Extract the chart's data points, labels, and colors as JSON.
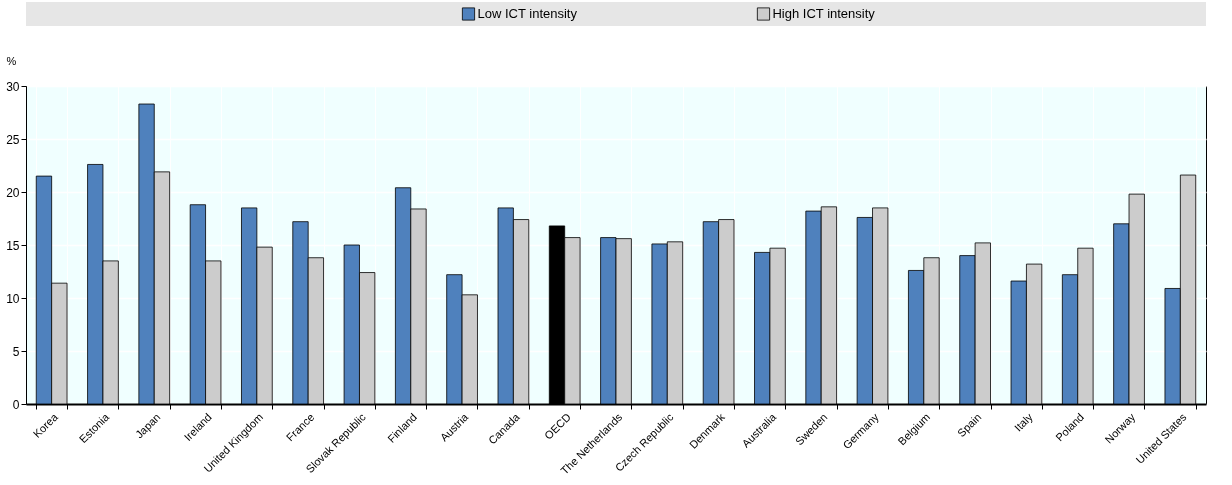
{
  "chart_data": {
    "type": "bar",
    "ylabel": "%",
    "categories": [
      "Korea",
      "Estonia",
      "Japan",
      "Ireland",
      "United Kingdom",
      "France",
      "Slovak Republic",
      "Finland",
      "Austria",
      "Canada",
      "OECD",
      "The Netherlands",
      "Czech Republic",
      "Denmark",
      "Australia",
      "Sweden",
      "Germany",
      "Belgium",
      "Spain",
      "Italy",
      "Poland",
      "Norway",
      "United States"
    ],
    "series": [
      {
        "name": "Low  ICT intensity",
        "color": "#4f81bd",
        "colors": [
          "#4f81bd",
          "#4f81bd",
          "#4f81bd",
          "#4f81bd",
          "#4f81bd",
          "#4f81bd",
          "#4f81bd",
          "#4f81bd",
          "#4f81bd",
          "#4f81bd",
          "#000000",
          "#4f81bd",
          "#4f81bd",
          "#4f81bd",
          "#4f81bd",
          "#4f81bd",
          "#4f81bd",
          "#4f81bd",
          "#4f81bd",
          "#4f81bd",
          "#4f81bd",
          "#4f81bd",
          "#4f81bd"
        ],
        "values": [
          21.5,
          22.6,
          28.3,
          18.8,
          18.5,
          17.2,
          15.0,
          20.4,
          12.2,
          18.5,
          16.8,
          15.7,
          15.1,
          17.2,
          14.3,
          18.2,
          17.6,
          12.6,
          14.0,
          11.6,
          12.2,
          17.0,
          10.9
        ]
      },
      {
        "name": "High ICT intensity",
        "color": "#cccccc",
        "values": [
          11.4,
          13.5,
          21.9,
          13.5,
          14.8,
          13.8,
          12.4,
          18.4,
          10.3,
          17.4,
          15.7,
          15.6,
          15.3,
          17.4,
          14.7,
          18.6,
          18.5,
          13.8,
          15.2,
          13.2,
          14.7,
          19.8,
          21.6
        ]
      }
    ],
    "ylim": [
      0,
      30
    ],
    "yticks": [
      0,
      5,
      10,
      15,
      20,
      25,
      30
    ],
    "grid": true,
    "legend": "top"
  }
}
